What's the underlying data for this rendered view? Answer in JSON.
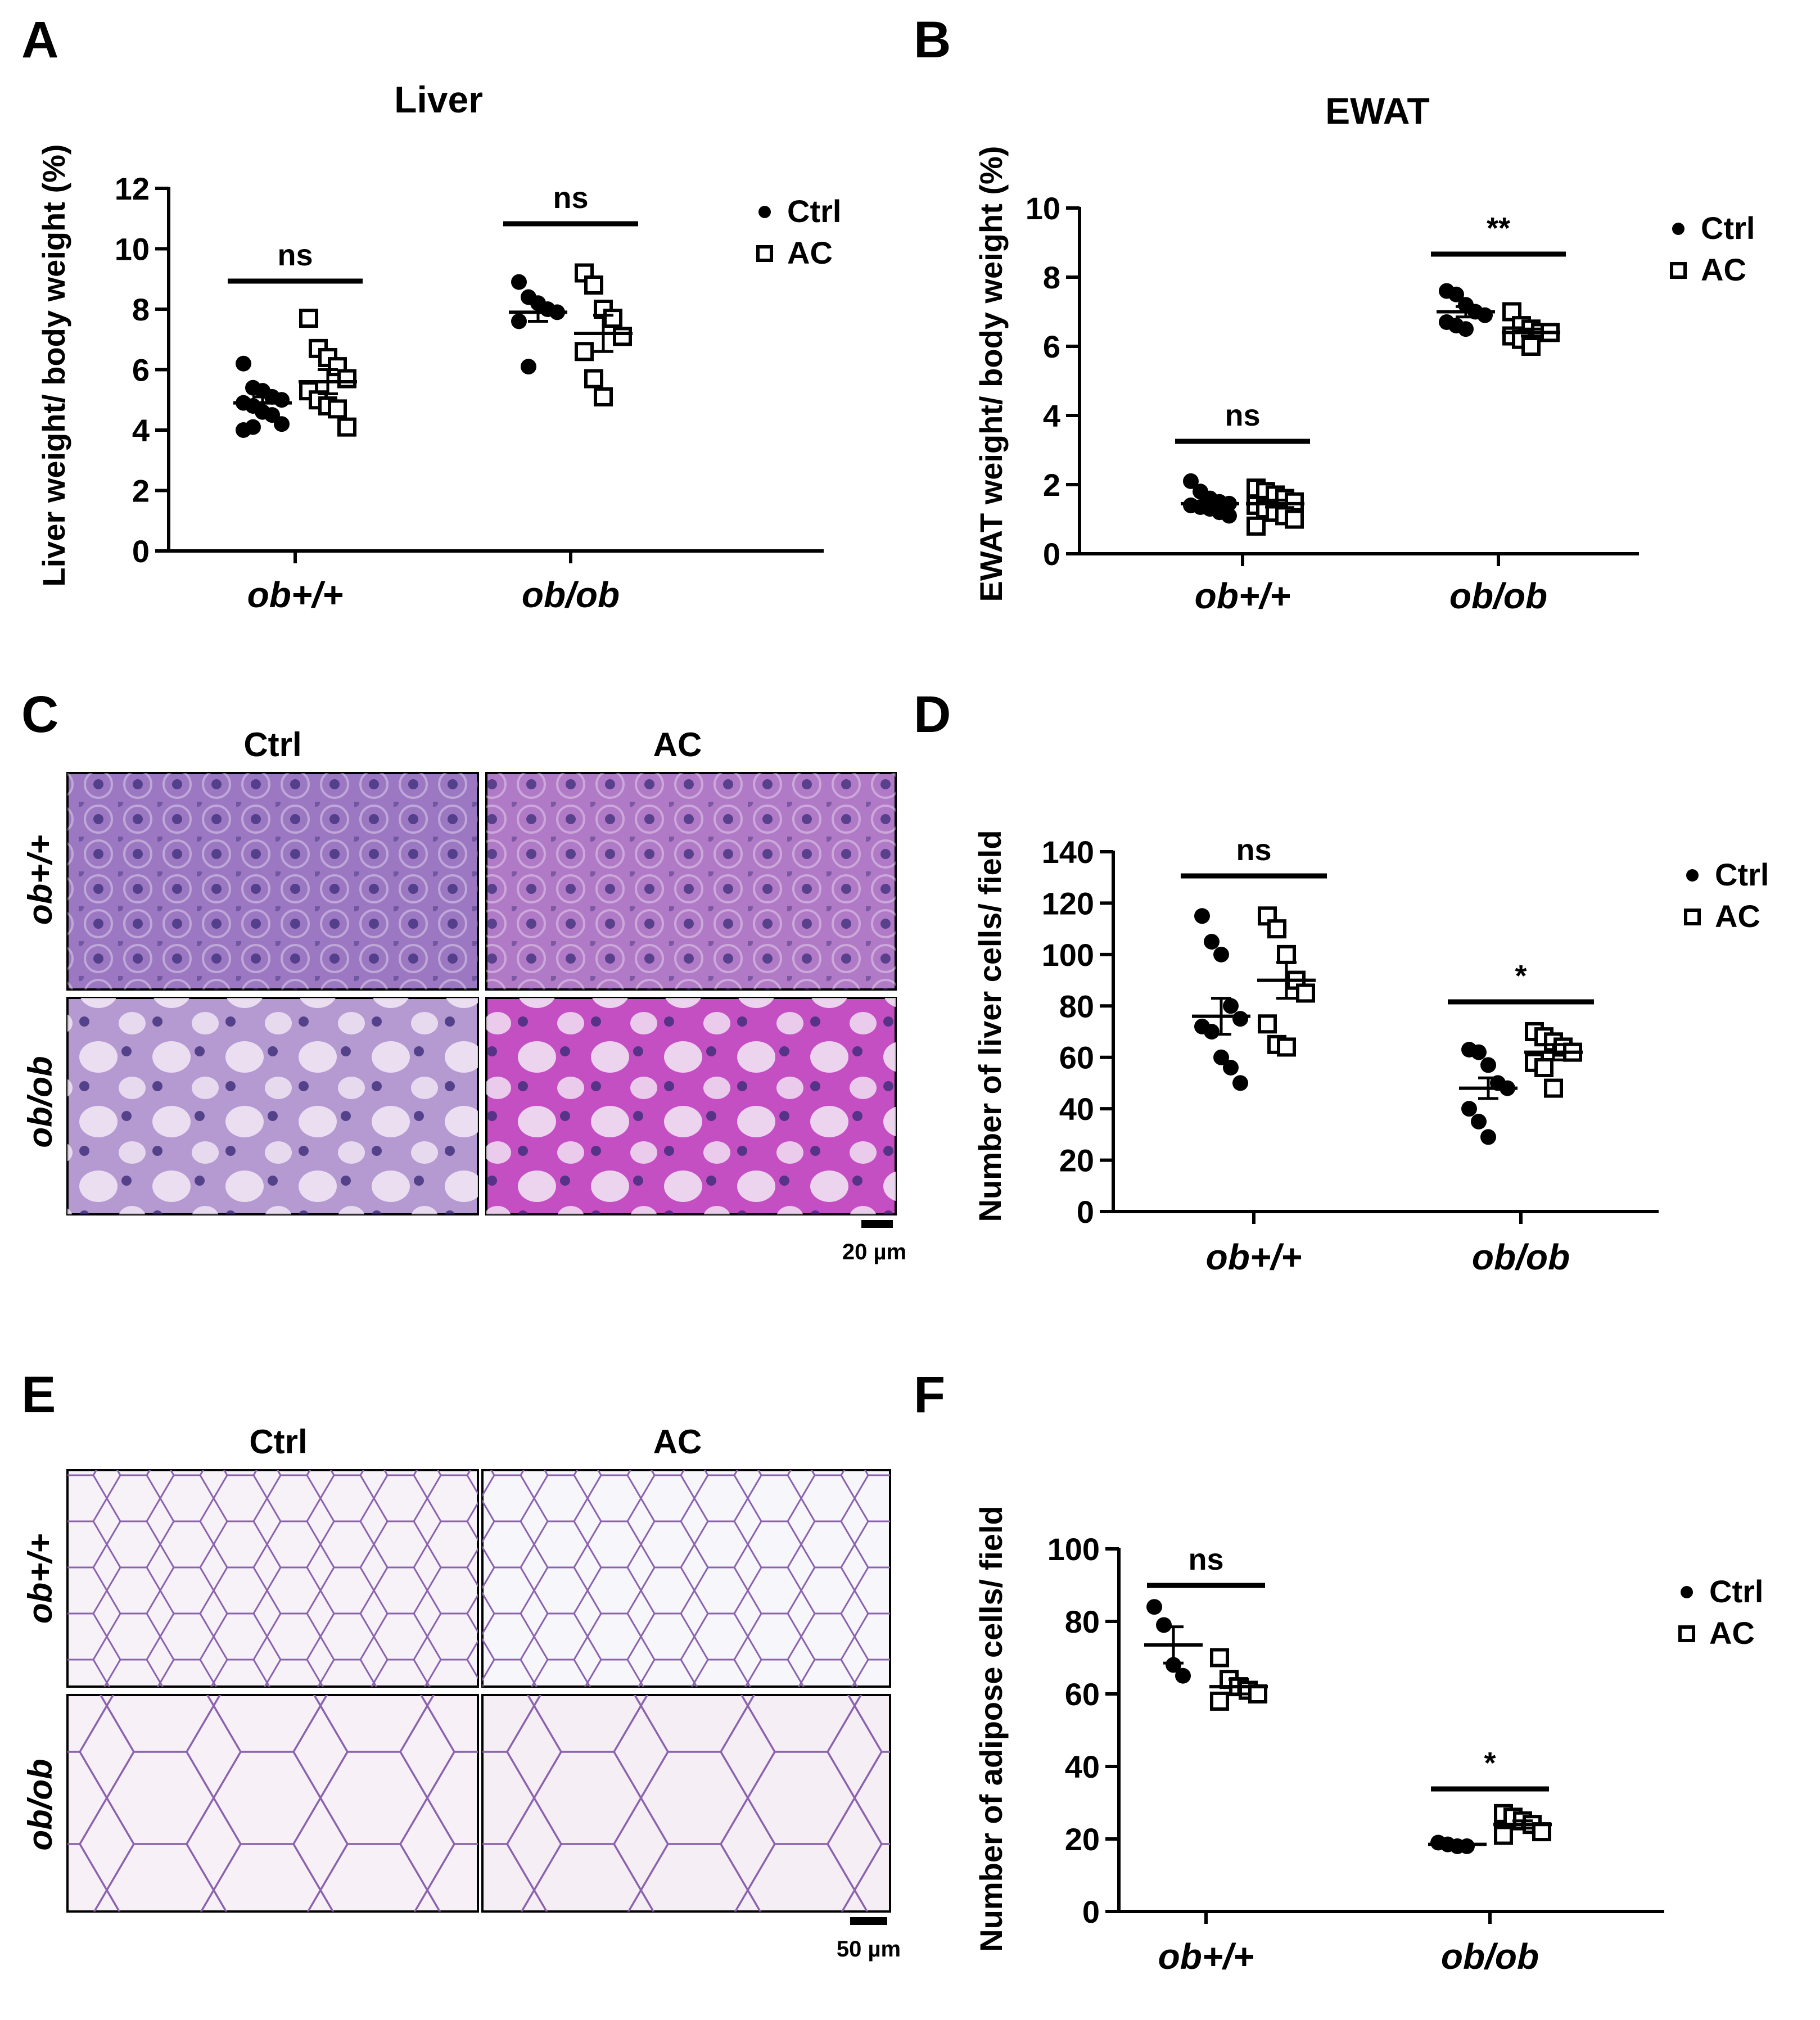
{
  "chart_data": [
    {
      "panel": "A",
      "type": "scatter",
      "title": "Liver",
      "ylabel": "Liver weight/ body weight (%)",
      "ylim": [
        0,
        12
      ],
      "yticks": [
        0,
        2,
        4,
        6,
        8,
        10,
        12
      ],
      "categories": [
        "ob+/+",
        "ob/ob"
      ],
      "legend": [
        "Ctrl",
        "AC"
      ],
      "legend_position": "right",
      "significance": [
        "ns",
        "ns"
      ],
      "series": [
        {
          "name": "Ctrl",
          "marker": "filled-circle",
          "means": [
            4.9,
            7.9
          ],
          "sem": [
            0.2,
            0.3
          ],
          "values": [
            [
              6.2,
              5.4,
              5.3,
              5.1,
              5.0,
              4.9,
              4.8,
              4.6,
              4.5,
              4.2,
              4.0,
              4.1
            ],
            [
              8.9,
              8.4,
              8.2,
              8.0,
              7.9,
              7.6,
              6.1
            ]
          ]
        },
        {
          "name": "AC",
          "marker": "open-square",
          "means": [
            5.6,
            7.2
          ],
          "sem": [
            0.4,
            0.6
          ],
          "values": [
            [
              7.7,
              6.7,
              6.4,
              6.1,
              5.7,
              5.3,
              5.0,
              4.8,
              4.7,
              4.1
            ],
            [
              9.2,
              8.8,
              8.0,
              7.7,
              7.1,
              6.6,
              5.7,
              5.1
            ]
          ]
        }
      ]
    },
    {
      "panel": "B",
      "type": "scatter",
      "title": "EWAT",
      "ylabel": "EWAT weight/ body weight (%)",
      "ylim": [
        0,
        10
      ],
      "yticks": [
        0,
        2,
        4,
        6,
        8,
        10
      ],
      "categories": [
        "ob+/+",
        "ob/ob"
      ],
      "legend": [
        "Ctrl",
        "AC"
      ],
      "legend_position": "right",
      "significance": [
        "ns",
        "**"
      ],
      "series": [
        {
          "name": "Ctrl",
          "marker": "filled-circle",
          "means": [
            1.45,
            7.0
          ],
          "sem": [
            0.1,
            0.15
          ],
          "values": [
            [
              2.1,
              1.8,
              1.6,
              1.5,
              1.45,
              1.4,
              1.35,
              1.3,
              1.2,
              1.1
            ],
            [
              7.6,
              7.5,
              7.2,
              7.0,
              6.9,
              6.7,
              6.6,
              6.5
            ]
          ]
        },
        {
          "name": "AC",
          "marker": "open-square",
          "means": [
            1.45,
            6.4
          ],
          "sem": [
            0.1,
            0.1
          ],
          "values": [
            [
              1.9,
              1.8,
              1.7,
              1.6,
              1.5,
              1.4,
              1.3,
              1.2,
              1.1,
              1.0,
              0.8
            ],
            [
              7.0,
              6.6,
              6.5,
              6.4,
              6.4,
              6.3,
              6.2,
              6.0
            ]
          ]
        }
      ]
    },
    {
      "panel": "D",
      "type": "scatter",
      "ylabel": "Number of liver cells/ field",
      "ylim": [
        0,
        140
      ],
      "yticks": [
        0,
        20,
        40,
        60,
        80,
        100,
        120,
        140
      ],
      "categories": [
        "ob+/+",
        "ob/ob"
      ],
      "legend": [
        "Ctrl",
        "AC"
      ],
      "legend_position": "right",
      "significance": [
        "ns",
        "*"
      ],
      "series": [
        {
          "name": "Ctrl",
          "marker": "filled-circle",
          "means": [
            76,
            48
          ],
          "sem": [
            7,
            4
          ],
          "values": [
            [
              115,
              105,
              100,
              80,
              75,
              72,
              70,
              60,
              56,
              50
            ],
            [
              63,
              62,
              57,
              50,
              48,
              40,
              35,
              29
            ]
          ]
        },
        {
          "name": "AC",
          "marker": "open-square",
          "means": [
            90,
            62
          ],
          "sem": [
            7,
            3
          ],
          "values": [
            [
              115,
              110,
              100,
              90,
              85,
              73,
              65,
              64
            ],
            [
              70,
              68,
              66,
              64,
              62,
              58,
              56,
              48
            ]
          ]
        }
      ]
    },
    {
      "panel": "F",
      "type": "scatter",
      "ylabel": "Number of adipose cells/ field",
      "ylim": [
        0,
        100
      ],
      "yticks": [
        0,
        20,
        40,
        60,
        80,
        100
      ],
      "categories": [
        "ob+/+",
        "ob/ob"
      ],
      "legend": [
        "Ctrl",
        "AC"
      ],
      "legend_position": "right",
      "significance": [
        "ns",
        "*"
      ],
      "series": [
        {
          "name": "Ctrl",
          "marker": "filled-circle",
          "means": [
            73.5,
            18.5
          ],
          "sem": [
            5,
            0.5
          ],
          "values": [
            [
              84,
              79,
              68,
              65
            ],
            [
              19,
              18.5,
              18,
              18
            ]
          ]
        },
        {
          "name": "AC",
          "marker": "open-square",
          "means": [
            62,
            24
          ],
          "sem": [
            2,
            1
          ],
          "values": [
            [
              70,
              64,
              62,
              61,
              60,
              58
            ],
            [
              27,
              26,
              25,
              24,
              22,
              21
            ]
          ]
        }
      ]
    }
  ],
  "figure": {
    "panel_labels": [
      "A",
      "B",
      "C",
      "D",
      "E",
      "F"
    ],
    "histology": [
      {
        "panel": "C",
        "columns": [
          "Ctrl",
          "AC"
        ],
        "rows": [
          "ob+/+",
          "ob/ob"
        ],
        "scale_bar": "20 µm",
        "tiles": [
          [
            "#9c78c3",
            "#b07ac6"
          ],
          [
            "#b59ad2",
            "#c34fc2"
          ]
        ]
      },
      {
        "panel": "E",
        "columns": [
          "Ctrl",
          "AC"
        ],
        "rows": [
          "ob+/+",
          "ob/ob"
        ],
        "scale_bar": "50 µm",
        "tiles": [
          [
            "#f6f2f8",
            "#f7f6fb"
          ],
          [
            "#f7f1f7",
            "#f6eef5"
          ]
        ]
      }
    ]
  }
}
